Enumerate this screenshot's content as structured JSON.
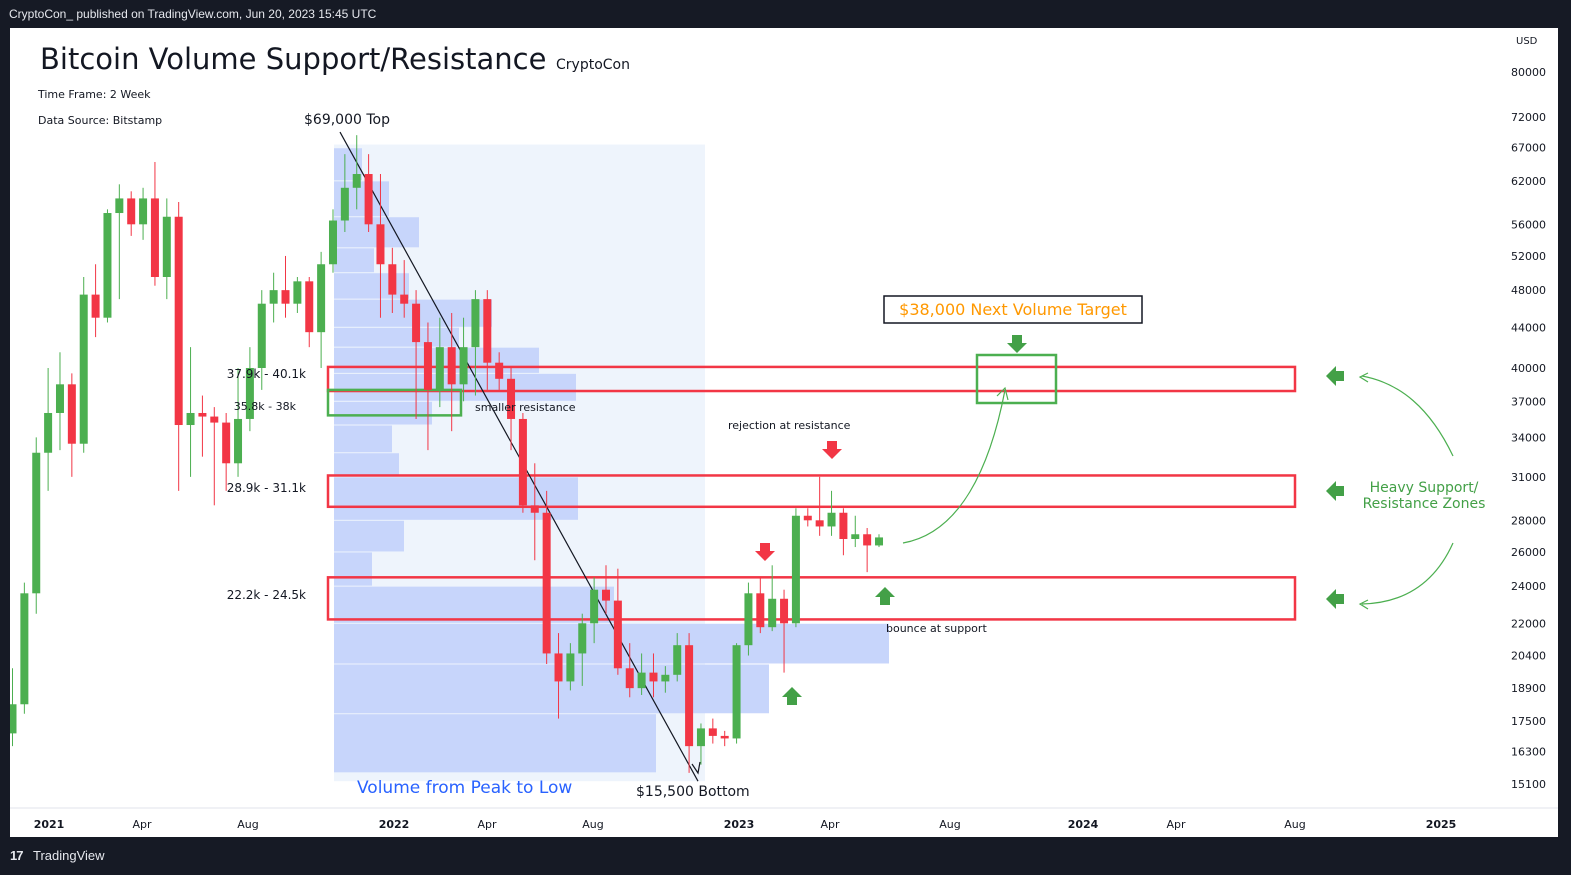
{
  "publish_note": "CryptoCon_ published on TradingView.com, Jun 20, 2023 15:45 UTC",
  "footer_brand": "TradingView",
  "footer_logo": "17",
  "header": {
    "title": "Bitcoin Volume Support/Resistance",
    "author": "CryptoCon",
    "timeframe": "Time Frame: 2 Week",
    "source": "Data Source: Bitstamp"
  },
  "colors": {
    "up": "#4caf50",
    "down": "#f23645",
    "zone": "#f23645",
    "target": "#4caf50",
    "volume": "#c7d5fb",
    "volume_area": "#eef4fc",
    "arrow": "#43a047",
    "annotation_orange": "#ff9800"
  },
  "chart_data": {
    "type": "candlestick",
    "title": "Bitcoin Volume Support/Resistance",
    "xlabel": "",
    "ylabel": "USD",
    "y_scale": "log",
    "ylim": [
      14500,
      86000
    ],
    "y_ticks": [
      80000,
      72000,
      67000,
      62000,
      56000,
      52000,
      48000,
      44000,
      40000,
      37000,
      34000,
      31000,
      28000,
      26000,
      24000,
      22000,
      20400,
      18900,
      17500,
      16300,
      15100
    ],
    "x_ticks": [
      "2021",
      "Apr",
      "Aug",
      "2022",
      "Apr",
      "Aug",
      "2023",
      "Apr",
      "Aug",
      "2024",
      "Apr",
      "Aug",
      "2025"
    ],
    "candles": [
      {
        "o": 17000,
        "h": 19800,
        "l": 16500,
        "c": 18200
      },
      {
        "o": 18200,
        "h": 24200,
        "l": 17800,
        "c": 23600
      },
      {
        "o": 23600,
        "h": 34000,
        "l": 22500,
        "c": 32800
      },
      {
        "o": 32800,
        "h": 40000,
        "l": 30000,
        "c": 36000
      },
      {
        "o": 36000,
        "h": 41500,
        "l": 33000,
        "c": 38500
      },
      {
        "o": 38500,
        "h": 39500,
        "l": 31000,
        "c": 33500
      },
      {
        "o": 33500,
        "h": 49500,
        "l": 32800,
        "c": 47500
      },
      {
        "o": 47500,
        "h": 51000,
        "l": 43000,
        "c": 45000
      },
      {
        "o": 45000,
        "h": 58000,
        "l": 44500,
        "c": 57500
      },
      {
        "o": 57500,
        "h": 61500,
        "l": 47000,
        "c": 59500
      },
      {
        "o": 59500,
        "h": 60500,
        "l": 54500,
        "c": 56000
      },
      {
        "o": 56000,
        "h": 61000,
        "l": 54000,
        "c": 59500
      },
      {
        "o": 59500,
        "h": 64800,
        "l": 48500,
        "c": 49500
      },
      {
        "o": 49500,
        "h": 59500,
        "l": 47000,
        "c": 57000
      },
      {
        "o": 57000,
        "h": 59000,
        "l": 30000,
        "c": 35000
      },
      {
        "o": 35000,
        "h": 42000,
        "l": 31000,
        "c": 36000
      },
      {
        "o": 36000,
        "h": 37500,
        "l": 32500,
        "c": 35700
      },
      {
        "o": 35700,
        "h": 36500,
        "l": 29000,
        "c": 35200
      },
      {
        "o": 35200,
        "h": 36000,
        "l": 30000,
        "c": 32000
      },
      {
        "o": 32000,
        "h": 40000,
        "l": 31000,
        "c": 35500
      },
      {
        "o": 35500,
        "h": 42000,
        "l": 34500,
        "c": 40000
      },
      {
        "o": 40000,
        "h": 48000,
        "l": 38000,
        "c": 46500
      },
      {
        "o": 46500,
        "h": 50000,
        "l": 44500,
        "c": 48000
      },
      {
        "o": 48000,
        "h": 52000,
        "l": 45000,
        "c": 46500
      },
      {
        "o": 46500,
        "h": 49500,
        "l": 45500,
        "c": 49000
      },
      {
        "o": 49000,
        "h": 49500,
        "l": 42000,
        "c": 43500
      },
      {
        "o": 43500,
        "h": 52500,
        "l": 40000,
        "c": 51000
      },
      {
        "o": 51000,
        "h": 58000,
        "l": 50000,
        "c": 56500
      },
      {
        "o": 56500,
        "h": 66000,
        "l": 55000,
        "c": 61000
      },
      {
        "o": 61000,
        "h": 69000,
        "l": 58000,
        "c": 63000
      },
      {
        "o": 63000,
        "h": 66000,
        "l": 55000,
        "c": 56000
      },
      {
        "o": 56000,
        "h": 63000,
        "l": 45000,
        "c": 51000
      },
      {
        "o": 51000,
        "h": 53000,
        "l": 45500,
        "c": 47500
      },
      {
        "o": 47500,
        "h": 51500,
        "l": 45000,
        "c": 46500
      },
      {
        "o": 46500,
        "h": 48000,
        "l": 35500,
        "c": 42500
      },
      {
        "o": 42500,
        "h": 44500,
        "l": 33000,
        "c": 38000
      },
      {
        "o": 38000,
        "h": 45000,
        "l": 36500,
        "c": 42000
      },
      {
        "o": 42000,
        "h": 45500,
        "l": 34500,
        "c": 38500
      },
      {
        "o": 38500,
        "h": 45000,
        "l": 37000,
        "c": 42000
      },
      {
        "o": 42000,
        "h": 48000,
        "l": 37500,
        "c": 47000
      },
      {
        "o": 47000,
        "h": 48000,
        "l": 38000,
        "c": 40500
      },
      {
        "o": 40500,
        "h": 41500,
        "l": 38000,
        "c": 39000
      },
      {
        "o": 39000,
        "h": 40000,
        "l": 33000,
        "c": 35500
      },
      {
        "o": 35500,
        "h": 36000,
        "l": 28500,
        "c": 29000
      },
      {
        "o": 29000,
        "h": 32000,
        "l": 25500,
        "c": 28500
      },
      {
        "o": 28500,
        "h": 30000,
        "l": 20000,
        "c": 20500
      },
      {
        "o": 20500,
        "h": 21500,
        "l": 17600,
        "c": 19200
      },
      {
        "o": 19200,
        "h": 21000,
        "l": 18800,
        "c": 20500
      },
      {
        "o": 20500,
        "h": 22500,
        "l": 19000,
        "c": 22000
      },
      {
        "o": 22000,
        "h": 24500,
        "l": 21000,
        "c": 23800
      },
      {
        "o": 23800,
        "h": 25200,
        "l": 22500,
        "c": 23200
      },
      {
        "o": 23200,
        "h": 25000,
        "l": 19500,
        "c": 19800
      },
      {
        "o": 19800,
        "h": 21000,
        "l": 18500,
        "c": 18900
      },
      {
        "o": 18900,
        "h": 20500,
        "l": 18600,
        "c": 19600
      },
      {
        "o": 19600,
        "h": 20500,
        "l": 18500,
        "c": 19200
      },
      {
        "o": 19200,
        "h": 19900,
        "l": 18700,
        "c": 19500
      },
      {
        "o": 19500,
        "h": 21500,
        "l": 19200,
        "c": 20900
      },
      {
        "o": 20900,
        "h": 21500,
        "l": 15500,
        "c": 16500
      },
      {
        "o": 16500,
        "h": 17400,
        "l": 15800,
        "c": 17200
      },
      {
        "o": 17200,
        "h": 17600,
        "l": 16600,
        "c": 16900
      },
      {
        "o": 16900,
        "h": 17100,
        "l": 16500,
        "c": 16800
      },
      {
        "o": 16800,
        "h": 21000,
        "l": 16600,
        "c": 20900
      },
      {
        "o": 20900,
        "h": 24200,
        "l": 20400,
        "c": 23600
      },
      {
        "o": 23600,
        "h": 24500,
        "l": 21500,
        "c": 21800
      },
      {
        "o": 21800,
        "h": 25200,
        "l": 21600,
        "c": 23300
      },
      {
        "o": 23300,
        "h": 23800,
        "l": 19600,
        "c": 22000
      },
      {
        "o": 22000,
        "h": 28800,
        "l": 21800,
        "c": 28300
      },
      {
        "o": 28300,
        "h": 28800,
        "l": 27600,
        "c": 28000
      },
      {
        "o": 28000,
        "h": 31000,
        "l": 27000,
        "c": 27600
      },
      {
        "o": 27600,
        "h": 30000,
        "l": 27000,
        "c": 28500
      },
      {
        "o": 28500,
        "h": 28800,
        "l": 25800,
        "c": 26800
      },
      {
        "o": 26800,
        "h": 28300,
        "l": 26300,
        "c": 27100
      },
      {
        "o": 27100,
        "h": 27500,
        "l": 24800,
        "c": 26400
      },
      {
        "o": 26400,
        "h": 27100,
        "l": 26300,
        "c": 26900
      }
    ],
    "volume_profile": [
      {
        "low": 62000,
        "high": 67000,
        "volume": 28
      },
      {
        "low": 57000,
        "high": 62000,
        "volume": 55
      },
      {
        "low": 53000,
        "high": 57000,
        "volume": 85
      },
      {
        "low": 50000,
        "high": 53000,
        "volume": 40
      },
      {
        "low": 47000,
        "high": 50000,
        "volume": 75
      },
      {
        "low": 44000,
        "high": 47000,
        "volume": 158
      },
      {
        "low": 42000,
        "high": 44000,
        "volume": 125
      },
      {
        "low": 39500,
        "high": 42000,
        "volume": 205
      },
      {
        "low": 37000,
        "high": 39500,
        "volume": 242
      },
      {
        "low": 35000,
        "high": 37000,
        "volume": 98
      },
      {
        "low": 32800,
        "high": 35000,
        "volume": 58
      },
      {
        "low": 31000,
        "high": 32800,
        "volume": 65
      },
      {
        "low": 28000,
        "high": 31000,
        "volume": 244
      },
      {
        "low": 26000,
        "high": 28000,
        "volume": 70
      },
      {
        "low": 24000,
        "high": 26000,
        "volume": 38
      },
      {
        "low": 22000,
        "high": 24000,
        "volume": 280
      },
      {
        "low": 20000,
        "high": 22000,
        "volume": 555
      },
      {
        "low": 17800,
        "high": 20000,
        "volume": 435
      },
      {
        "low": 15500,
        "high": 17800,
        "volume": 322
      }
    ]
  },
  "zones": [
    {
      "label": "37.9k - 40.1k",
      "low": 37900,
      "high": 40100
    },
    {
      "label": "28.9k - 31.1k",
      "low": 28900,
      "high": 31100
    },
    {
      "label": "22.2k - 24.5k",
      "low": 22200,
      "high": 24500
    }
  ],
  "small_zone": {
    "label": "35.8k - 38k",
    "low": 35800,
    "high": 38000
  },
  "annotations": {
    "top": "$69,000 Top",
    "bottom": "$15,500 Bottom",
    "volume_caption": "Volume from Peak to Low",
    "smaller_resistance": "smaller resistance",
    "rejection": "rejection at resistance",
    "bounce": "bounce at support",
    "target": "$38,000 Next Volume Target",
    "heavy_line1": "Heavy Support/",
    "heavy_line2": "Resistance Zones"
  }
}
